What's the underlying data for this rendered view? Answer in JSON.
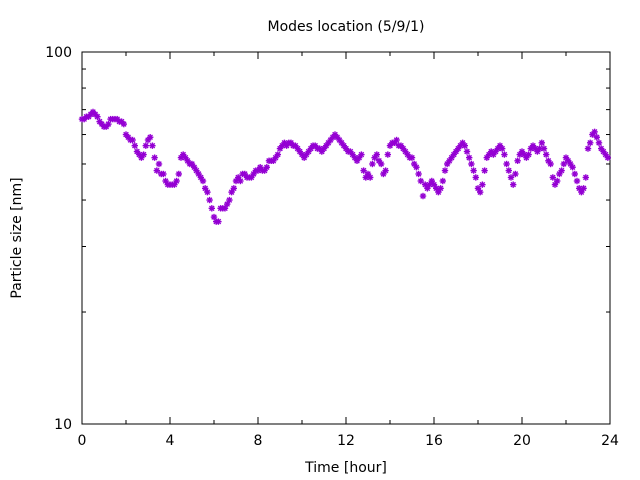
{
  "chart_data": {
    "type": "scatter",
    "title": "Modes location (5/9/1)",
    "xlabel": "Time [hour]",
    "ylabel": "Particle size [nm]",
    "xlim": [
      0,
      24
    ],
    "ylim": [
      10,
      100
    ],
    "y_scale": "log",
    "grid": false,
    "legend": "none",
    "marker": "asterisk",
    "color": "#9400d3",
    "x_ticks": [
      {
        "value": 0,
        "label": "0"
      },
      {
        "value": 4,
        "label": "4"
      },
      {
        "value": 8,
        "label": "8"
      },
      {
        "value": 12,
        "label": "12"
      },
      {
        "value": 16,
        "label": "16"
      },
      {
        "value": 20,
        "label": "20"
      },
      {
        "value": 24,
        "label": "24"
      }
    ],
    "y_ticks": [
      {
        "value": 10,
        "label": "10"
      },
      {
        "value": 100,
        "label": "100"
      }
    ],
    "series": [
      {
        "points": [
          [
            0.0,
            66
          ],
          [
            0.1,
            66
          ],
          [
            0.2,
            67
          ],
          [
            0.3,
            67
          ],
          [
            0.4,
            68
          ],
          [
            0.5,
            69
          ],
          [
            0.6,
            68
          ],
          [
            0.7,
            67
          ],
          [
            0.8,
            65
          ],
          [
            0.9,
            64
          ],
          [
            1.0,
            63
          ],
          [
            1.1,
            63
          ],
          [
            1.2,
            64
          ],
          [
            1.3,
            66
          ],
          [
            1.4,
            66
          ],
          [
            1.5,
            66
          ],
          [
            1.6,
            66
          ],
          [
            1.7,
            65
          ],
          [
            1.8,
            65
          ],
          [
            1.9,
            64
          ],
          [
            2.0,
            60
          ],
          [
            2.1,
            59
          ],
          [
            2.2,
            58
          ],
          [
            2.3,
            58
          ],
          [
            2.4,
            56
          ],
          [
            2.5,
            54
          ],
          [
            2.6,
            53
          ],
          [
            2.7,
            52
          ],
          [
            2.8,
            53
          ],
          [
            2.9,
            56
          ],
          [
            3.0,
            58
          ],
          [
            3.1,
            59
          ],
          [
            3.2,
            56
          ],
          [
            3.3,
            52
          ],
          [
            3.4,
            48
          ],
          [
            3.5,
            50
          ],
          [
            3.6,
            47
          ],
          [
            3.7,
            47
          ],
          [
            3.8,
            45
          ],
          [
            3.9,
            44
          ],
          [
            4.0,
            44
          ],
          [
            4.1,
            44
          ],
          [
            4.2,
            44
          ],
          [
            4.3,
            45
          ],
          [
            4.4,
            47
          ],
          [
            4.5,
            52
          ],
          [
            4.6,
            53
          ],
          [
            4.7,
            52
          ],
          [
            4.8,
            51
          ],
          [
            4.9,
            50
          ],
          [
            5.0,
            50
          ],
          [
            5.1,
            49
          ],
          [
            5.2,
            48
          ],
          [
            5.3,
            47
          ],
          [
            5.4,
            46
          ],
          [
            5.5,
            45
          ],
          [
            5.6,
            43
          ],
          [
            5.7,
            42
          ],
          [
            5.8,
            40
          ],
          [
            5.9,
            38
          ],
          [
            6.0,
            36
          ],
          [
            6.1,
            35
          ],
          [
            6.2,
            35
          ],
          [
            6.3,
            38
          ],
          [
            6.4,
            38
          ],
          [
            6.5,
            38
          ],
          [
            6.6,
            39
          ],
          [
            6.7,
            40
          ],
          [
            6.8,
            42
          ],
          [
            6.9,
            43
          ],
          [
            7.0,
            45
          ],
          [
            7.1,
            46
          ],
          [
            7.2,
            45
          ],
          [
            7.3,
            47
          ],
          [
            7.4,
            47
          ],
          [
            7.5,
            46
          ],
          [
            7.6,
            46
          ],
          [
            7.7,
            46
          ],
          [
            7.8,
            47
          ],
          [
            7.9,
            48
          ],
          [
            8.0,
            48
          ],
          [
            8.1,
            49
          ],
          [
            8.2,
            48
          ],
          [
            8.3,
            48
          ],
          [
            8.4,
            49
          ],
          [
            8.5,
            51
          ],
          [
            8.6,
            51
          ],
          [
            8.7,
            51
          ],
          [
            8.8,
            52
          ],
          [
            8.9,
            53
          ],
          [
            9.0,
            55
          ],
          [
            9.1,
            56
          ],
          [
            9.2,
            57
          ],
          [
            9.3,
            56
          ],
          [
            9.4,
            57
          ],
          [
            9.5,
            57
          ],
          [
            9.6,
            56
          ],
          [
            9.7,
            56
          ],
          [
            9.8,
            55
          ],
          [
            9.9,
            54
          ],
          [
            10.0,
            53
          ],
          [
            10.1,
            52
          ],
          [
            10.2,
            53
          ],
          [
            10.3,
            54
          ],
          [
            10.4,
            55
          ],
          [
            10.5,
            56
          ],
          [
            10.6,
            56
          ],
          [
            10.7,
            55
          ],
          [
            10.8,
            55
          ],
          [
            10.9,
            54
          ],
          [
            11.0,
            55
          ],
          [
            11.1,
            56
          ],
          [
            11.2,
            57
          ],
          [
            11.3,
            58
          ],
          [
            11.4,
            59
          ],
          [
            11.5,
            60
          ],
          [
            11.6,
            59
          ],
          [
            11.7,
            58
          ],
          [
            11.8,
            57
          ],
          [
            11.9,
            56
          ],
          [
            12.0,
            55
          ],
          [
            12.1,
            54
          ],
          [
            12.2,
            54
          ],
          [
            12.3,
            53
          ],
          [
            12.4,
            52
          ],
          [
            12.5,
            51
          ],
          [
            12.6,
            52
          ],
          [
            12.7,
            53
          ],
          [
            12.8,
            48
          ],
          [
            12.9,
            46
          ],
          [
            13.0,
            47
          ],
          [
            13.1,
            46
          ],
          [
            13.2,
            50
          ],
          [
            13.3,
            52
          ],
          [
            13.4,
            53
          ],
          [
            13.5,
            51
          ],
          [
            13.6,
            50
          ],
          [
            13.7,
            47
          ],
          [
            13.8,
            48
          ],
          [
            13.9,
            53
          ],
          [
            14.0,
            56
          ],
          [
            14.1,
            57
          ],
          [
            14.2,
            57
          ],
          [
            14.3,
            58
          ],
          [
            14.4,
            56
          ],
          [
            14.5,
            56
          ],
          [
            14.6,
            55
          ],
          [
            14.7,
            54
          ],
          [
            14.8,
            53
          ],
          [
            14.9,
            52
          ],
          [
            15.0,
            52
          ],
          [
            15.1,
            50
          ],
          [
            15.2,
            49
          ],
          [
            15.3,
            47
          ],
          [
            15.4,
            45
          ],
          [
            15.5,
            41
          ],
          [
            15.6,
            44
          ],
          [
            15.7,
            43
          ],
          [
            15.8,
            44
          ],
          [
            15.9,
            45
          ],
          [
            16.0,
            44
          ],
          [
            16.1,
            43
          ],
          [
            16.2,
            42
          ],
          [
            16.3,
            43
          ],
          [
            16.4,
            45
          ],
          [
            16.5,
            48
          ],
          [
            16.6,
            50
          ],
          [
            16.7,
            51
          ],
          [
            16.8,
            52
          ],
          [
            16.9,
            53
          ],
          [
            17.0,
            54
          ],
          [
            17.1,
            55
          ],
          [
            17.2,
            56
          ],
          [
            17.3,
            57
          ],
          [
            17.4,
            56
          ],
          [
            17.5,
            54
          ],
          [
            17.6,
            52
          ],
          [
            17.7,
            50
          ],
          [
            17.8,
            48
          ],
          [
            17.9,
            46
          ],
          [
            18.0,
            43
          ],
          [
            18.1,
            42
          ],
          [
            18.2,
            44
          ],
          [
            18.3,
            48
          ],
          [
            18.4,
            52
          ],
          [
            18.5,
            53
          ],
          [
            18.6,
            54
          ],
          [
            18.7,
            53
          ],
          [
            18.8,
            54
          ],
          [
            18.9,
            55
          ],
          [
            19.0,
            56
          ],
          [
            19.1,
            55
          ],
          [
            19.2,
            53
          ],
          [
            19.3,
            50
          ],
          [
            19.4,
            48
          ],
          [
            19.5,
            46
          ],
          [
            19.6,
            44
          ],
          [
            19.7,
            47
          ],
          [
            19.8,
            51
          ],
          [
            19.9,
            53
          ],
          [
            20.0,
            54
          ],
          [
            20.1,
            53
          ],
          [
            20.2,
            52
          ],
          [
            20.3,
            53
          ],
          [
            20.4,
            55
          ],
          [
            20.5,
            56
          ],
          [
            20.6,
            55
          ],
          [
            20.7,
            54
          ],
          [
            20.8,
            55
          ],
          [
            20.9,
            57
          ],
          [
            21.0,
            55
          ],
          [
            21.1,
            53
          ],
          [
            21.2,
            51
          ],
          [
            21.3,
            50
          ],
          [
            21.4,
            46
          ],
          [
            21.5,
            44
          ],
          [
            21.6,
            45
          ],
          [
            21.7,
            47
          ],
          [
            21.8,
            48
          ],
          [
            21.9,
            50
          ],
          [
            22.0,
            52
          ],
          [
            22.1,
            51
          ],
          [
            22.2,
            50
          ],
          [
            22.3,
            49
          ],
          [
            22.4,
            47
          ],
          [
            22.5,
            45
          ],
          [
            22.6,
            43
          ],
          [
            22.7,
            42
          ],
          [
            22.8,
            43
          ],
          [
            22.9,
            46
          ],
          [
            23.0,
            55
          ],
          [
            23.1,
            57
          ],
          [
            23.2,
            60
          ],
          [
            23.3,
            61
          ],
          [
            23.4,
            59
          ],
          [
            23.5,
            57
          ],
          [
            23.6,
            55
          ],
          [
            23.7,
            54
          ],
          [
            23.8,
            53
          ],
          [
            23.9,
            52
          ]
        ]
      }
    ]
  }
}
